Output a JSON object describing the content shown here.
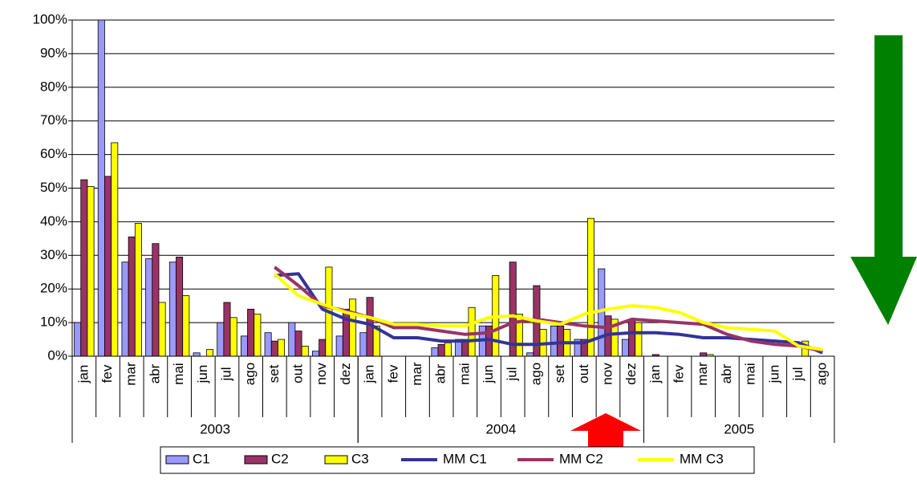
{
  "chart_data": {
    "type": "bar",
    "groups": [
      {
        "label": "2003",
        "categories": [
          "jan",
          "fev",
          "mar",
          "abr",
          "mai",
          "jun",
          "jul",
          "ago",
          "set",
          "out",
          "nov",
          "dez"
        ]
      },
      {
        "label": "2004",
        "categories": [
          "jan",
          "fev",
          "mar",
          "abr",
          "mai",
          "jun",
          "jul",
          "ago",
          "set",
          "out",
          "nov",
          "dez"
        ]
      },
      {
        "label": "2005",
        "categories": [
          "jan",
          "fev",
          "mar",
          "abr",
          "mai",
          "jun",
          "jul",
          "ago"
        ]
      }
    ],
    "series": [
      {
        "name": "C1",
        "type": "bar",
        "color": "#9999ff",
        "values": [
          10,
          100,
          28,
          29,
          28,
          1,
          10,
          6,
          7,
          10,
          1.5,
          6,
          7,
          0,
          0,
          2.5,
          5,
          9,
          0,
          1,
          9,
          5,
          26,
          5,
          0,
          0,
          0,
          0,
          0,
          0,
          0,
          0
        ]
      },
      {
        "name": "C2",
        "type": "bar",
        "color": "#993366",
        "values": [
          52.5,
          53.5,
          35.5,
          33.5,
          29.5,
          0,
          16,
          14,
          4.5,
          7.5,
          5,
          14,
          17.5,
          0,
          0,
          3.5,
          5,
          9,
          28,
          21,
          9,
          5,
          12,
          11,
          0.5,
          0,
          1,
          0,
          0,
          0,
          0,
          0
        ]
      },
      {
        "name": "C3",
        "type": "bar",
        "color": "#ffff00",
        "values": [
          50.5,
          63.5,
          39.5,
          16,
          18,
          2,
          11.5,
          12.5,
          5,
          3,
          26.5,
          17,
          9,
          0,
          0,
          4,
          14.5,
          24,
          12.5,
          8,
          8,
          41,
          11,
          10,
          0,
          0,
          0.5,
          0,
          0,
          0,
          4.5,
          0
        ]
      },
      {
        "name": "MM C1",
        "type": "line",
        "color": "#333399",
        "values": [
          null,
          null,
          null,
          null,
          null,
          null,
          null,
          null,
          24,
          24.5,
          14,
          11,
          9.5,
          5.5,
          5.5,
          4.5,
          4.5,
          5,
          3.5,
          3.5,
          4,
          4,
          6.5,
          7,
          7,
          6.5,
          5.5,
          5.5,
          5,
          4.5,
          4,
          1
        ]
      },
      {
        "name": "MM C2",
        "type": "line",
        "color": "#993366",
        "values": [
          null,
          null,
          null,
          null,
          null,
          null,
          null,
          null,
          26.5,
          21,
          15,
          13.5,
          11.5,
          8.5,
          8.5,
          7.5,
          6.5,
          7,
          10,
          11,
          10,
          9,
          8.5,
          11,
          10.5,
          10,
          9.5,
          6.5,
          4.5,
          3.5,
          3,
          1.5
        ]
      },
      {
        "name": "MM C3",
        "type": "line",
        "color": "#ffff00",
        "values": [
          null,
          null,
          null,
          null,
          null,
          null,
          null,
          null,
          24.5,
          18,
          15.5,
          13,
          11.5,
          9.5,
          9.5,
          9,
          9,
          11.5,
          12,
          10.5,
          9.5,
          12.5,
          14,
          15,
          14.5,
          13,
          10,
          8.5,
          8,
          7.5,
          3,
          2
        ]
      }
    ],
    "ylim": [
      0,
      100
    ],
    "yticks": [
      {
        "value": 0,
        "label": "0%"
      },
      {
        "value": 10,
        "label": "10%"
      },
      {
        "value": 20,
        "label": "20%"
      },
      {
        "value": 30,
        "label": "30%"
      },
      {
        "value": 40,
        "label": "40%"
      },
      {
        "value": 50,
        "label": "50%"
      },
      {
        "value": 60,
        "label": "60%"
      },
      {
        "value": 70,
        "label": "70%"
      },
      {
        "value": 80,
        "label": "80%"
      },
      {
        "value": 90,
        "label": "90%"
      },
      {
        "value": 100,
        "label": "100%"
      }
    ],
    "grid": true
  }
}
